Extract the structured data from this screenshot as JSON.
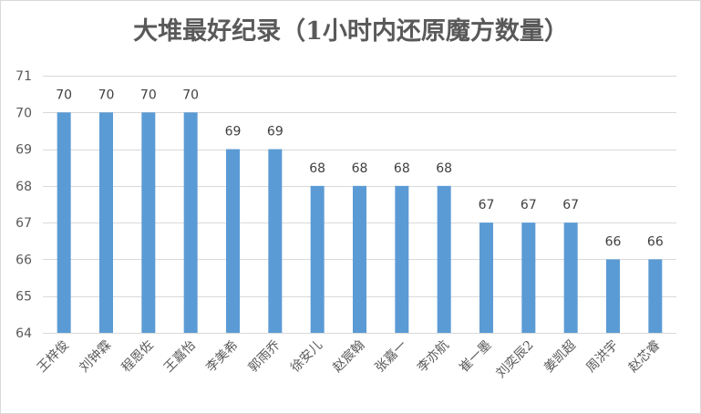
{
  "chart_data": {
    "type": "bar",
    "title": "大堆最好纪录（1小时内还原魔方数量）",
    "xlabel": "",
    "ylabel": "",
    "ylim": [
      64,
      71
    ],
    "yticks": [
      64,
      65,
      66,
      67,
      68,
      69,
      70,
      71
    ],
    "grid": true,
    "legend": "none",
    "data_labels": true,
    "bar_color": "#5b9bd5",
    "categories": [
      "王梓俊",
      "刘钟霖",
      "程恩佐",
      "王嘉怡",
      "李美希",
      "郭雨乔",
      "徐安儿",
      "赵宸翰",
      "张嘉一",
      "李亦航",
      "崔一墨",
      "刘奕辰2",
      "姜凯超",
      "周洪宇",
      "赵芯睿"
    ],
    "values": [
      70,
      70,
      70,
      70,
      69,
      69,
      68,
      68,
      68,
      68,
      67,
      67,
      67,
      66,
      66
    ]
  }
}
